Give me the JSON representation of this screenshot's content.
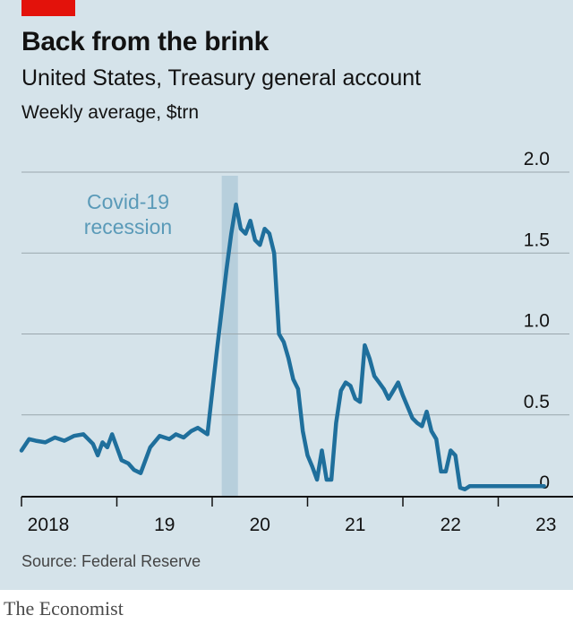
{
  "brand_color": "#e3120b",
  "header": {
    "title": "Back from the brink",
    "subtitle": "United States, Treasury general account",
    "unit": "Weekly average, $trn"
  },
  "footer": {
    "source": "Source: Federal Reserve",
    "brand": "The Economist"
  },
  "chart_data": {
    "type": "line",
    "title": "Back from the brink",
    "ylabel": "Weekly average, $trn",
    "ylim": [
      0,
      2.0
    ],
    "y_ticks": [
      0,
      0.5,
      1.0,
      1.5,
      2.0
    ],
    "y_tick_labels": [
      "0",
      "0.5",
      "1.0",
      "1.5",
      "2.0"
    ],
    "x_range": [
      2018.0,
      2023.8
    ],
    "x_ticks": [
      2018,
      2019,
      2020,
      2021,
      2022,
      2023
    ],
    "x_tick_labels": [
      "2018",
      "19",
      "20",
      "21",
      "22",
      "23"
    ],
    "line_color": "#1f6f9c",
    "annotation": {
      "label_lines": [
        "Covid-19",
        "recession"
      ],
      "start": 2020.1,
      "end": 2020.27,
      "color": "#b7cfdc"
    },
    "series": [
      {
        "name": "Treasury general account",
        "x": [
          2018.0,
          2018.08,
          2018.15,
          2018.25,
          2018.35,
          2018.45,
          2018.55,
          2018.65,
          2018.75,
          2018.8,
          2018.85,
          2018.9,
          2018.95,
          2019.0,
          2019.05,
          2019.12,
          2019.18,
          2019.25,
          2019.35,
          2019.45,
          2019.55,
          2019.62,
          2019.7,
          2019.78,
          2019.85,
          2019.95,
          2020.05,
          2020.15,
          2020.2,
          2020.25,
          2020.3,
          2020.35,
          2020.4,
          2020.45,
          2020.5,
          2020.55,
          2020.6,
          2020.65,
          2020.7,
          2020.75,
          2020.8,
          2020.85,
          2020.9,
          2020.95,
          2021.0,
          2021.05,
          2021.1,
          2021.15,
          2021.2,
          2021.25,
          2021.3,
          2021.35,
          2021.4,
          2021.45,
          2021.5,
          2021.55,
          2021.6,
          2021.65,
          2021.7,
          2021.75,
          2021.8,
          2021.85,
          2021.9,
          2021.95,
          2022.0,
          2022.05,
          2022.1,
          2022.15,
          2022.2,
          2022.25,
          2022.3,
          2022.35,
          2022.4,
          2022.45,
          2022.5,
          2022.55,
          2022.6,
          2022.65,
          2022.7,
          2022.75,
          2022.8,
          2022.85,
          2022.9,
          2022.95,
          2023.0,
          2023.05,
          2023.1,
          2023.15,
          2023.2,
          2023.25,
          2023.3,
          2023.35,
          2023.4,
          2023.45,
          2023.48
        ],
        "values": [
          0.28,
          0.35,
          0.34,
          0.33,
          0.36,
          0.34,
          0.37,
          0.38,
          0.32,
          0.25,
          0.33,
          0.3,
          0.38,
          0.3,
          0.22,
          0.2,
          0.16,
          0.14,
          0.3,
          0.37,
          0.35,
          0.38,
          0.36,
          0.4,
          0.42,
          0.38,
          0.9,
          1.4,
          1.62,
          1.8,
          1.65,
          1.62,
          1.7,
          1.58,
          1.55,
          1.65,
          1.62,
          1.5,
          1.0,
          0.95,
          0.85,
          0.72,
          0.66,
          0.4,
          0.25,
          0.18,
          0.1,
          0.28,
          0.1,
          0.1,
          0.45,
          0.65,
          0.7,
          0.68,
          0.6,
          0.58,
          0.93,
          0.85,
          0.74,
          0.7,
          0.66,
          0.6,
          0.65,
          0.7,
          0.62,
          0.55,
          0.48,
          0.45,
          0.43,
          0.52,
          0.4,
          0.35,
          0.15,
          0.15,
          0.28,
          0.25,
          0.05,
          0.04,
          0.06,
          0.06,
          0.06,
          0.06,
          0.06,
          0.06,
          0.06,
          0.06,
          0.06,
          0.06,
          0.06,
          0.06,
          0.06,
          0.06,
          0.06,
          0.06,
          0.06
        ]
      }
    ]
  }
}
